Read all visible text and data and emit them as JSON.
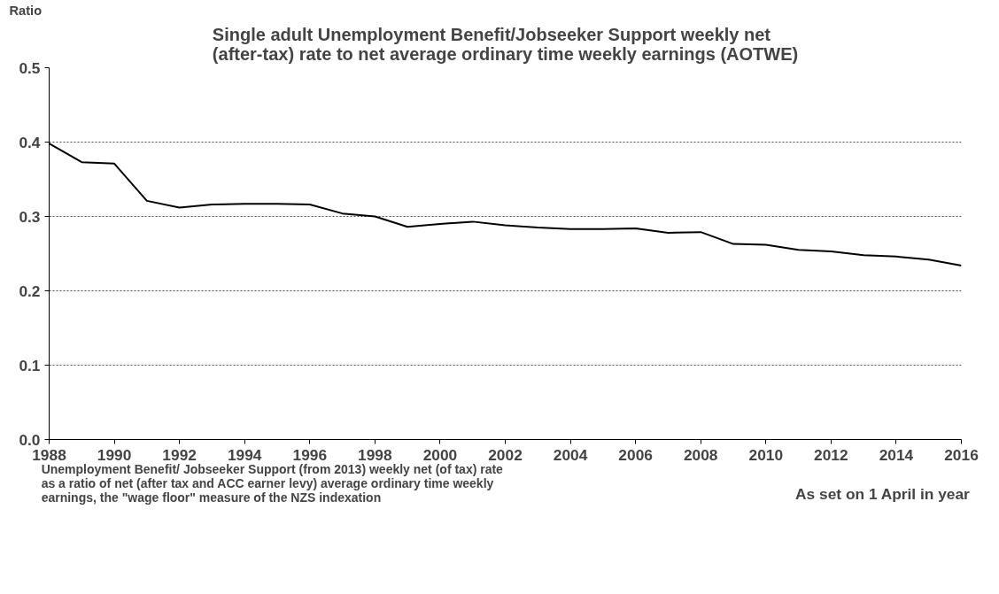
{
  "chart_data": {
    "type": "line",
    "title": "Single adult Unemployment Benefit/Jobseeker Support weekly net\n(after-tax) rate to net average ordinary time weekly earnings (AOTWE)",
    "ylabel": "Ratio",
    "x": [
      1988,
      1989,
      1990,
      1991,
      1992,
      1993,
      1994,
      1995,
      1996,
      1997,
      1998,
      1999,
      2000,
      2001,
      2002,
      2003,
      2004,
      2005,
      2006,
      2007,
      2008,
      2009,
      2010,
      2011,
      2012,
      2013,
      2014,
      2015,
      2016
    ],
    "series": [
      {
        "name": "Unemployment Benefit/ Jobseeker Support (from 2013) weekly net (of tax) rate\nas a ratio of net (after tax and ACC earner levy) average ordinary time weekly\nearnings, the \"wage floor\" measure of the NZS indexation",
        "color": "#000000",
        "values": [
          0.398,
          0.373,
          0.371,
          0.321,
          0.312,
          0.316,
          0.317,
          0.317,
          0.316,
          0.304,
          0.3,
          0.286,
          0.29,
          0.293,
          0.288,
          0.285,
          0.283,
          0.283,
          0.284,
          0.278,
          0.279,
          0.263,
          0.262,
          0.255,
          0.253,
          0.248,
          0.246,
          0.242,
          0.234
        ]
      }
    ],
    "xlim": [
      1988,
      2016
    ],
    "xticks": [
      1988,
      1990,
      1992,
      1994,
      1996,
      1998,
      2000,
      2002,
      2004,
      2006,
      2008,
      2010,
      2012,
      2014,
      2016
    ],
    "ylim": [
      0,
      0.5
    ],
    "yticks": [
      {
        "value": 0,
        "label": "0.0"
      },
      0.1,
      0.2,
      0.3,
      0.4,
      0.5
    ],
    "grid": "y",
    "legend": "bottom",
    "line_style": "solid",
    "marker": "none",
    "annotations": [
      "As set on 1 April in year"
    ]
  }
}
